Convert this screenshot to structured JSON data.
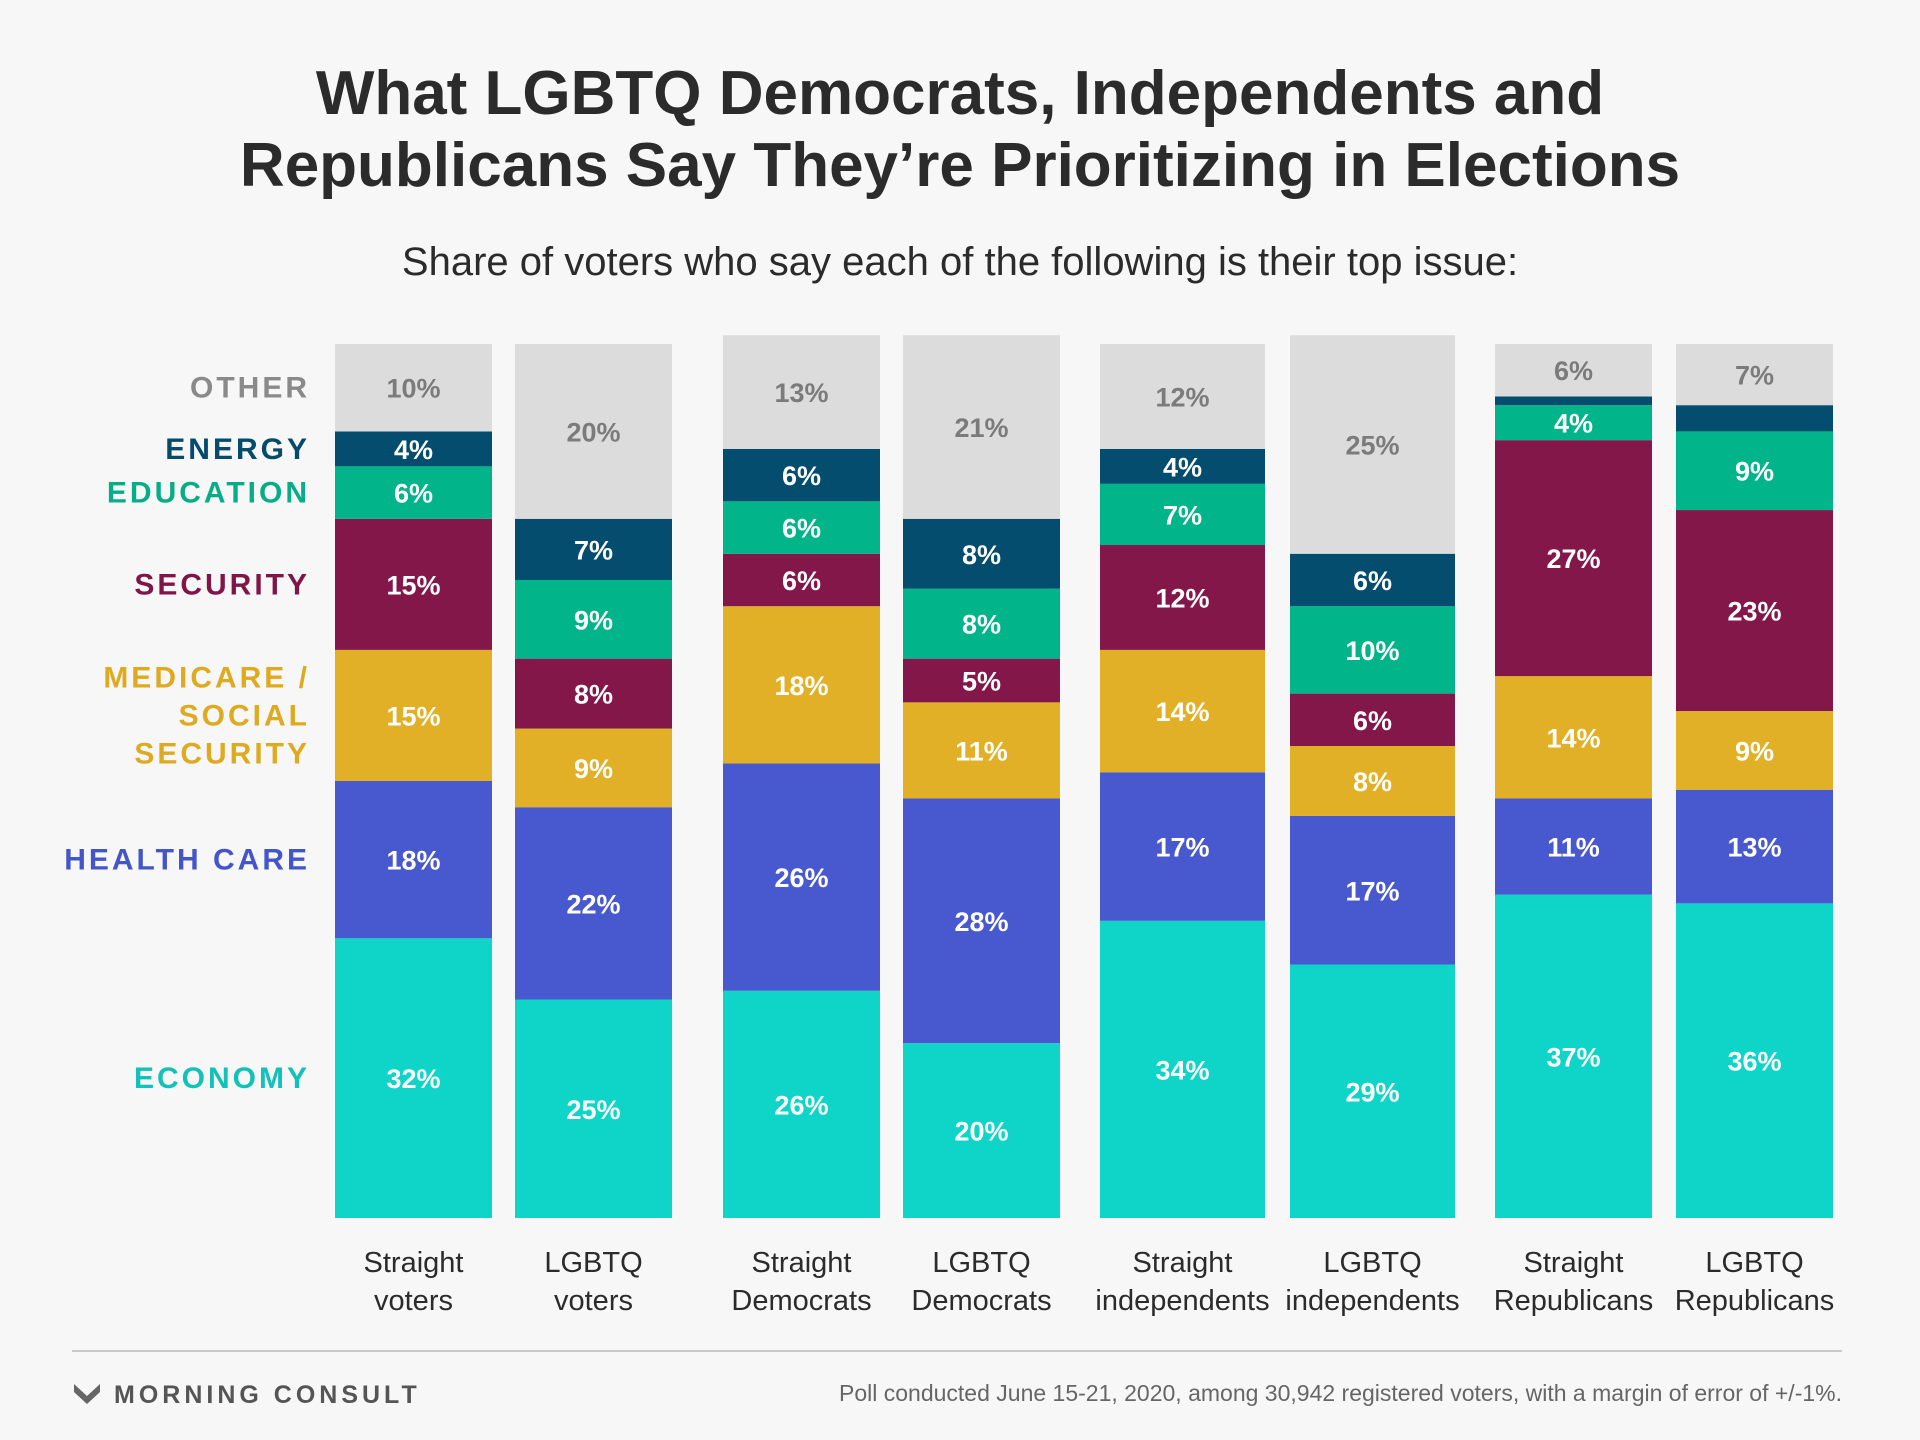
{
  "title": "What LGBTQ Democrats, Independents and\nRepublicans Say They’re Prioritizing in Elections",
  "subtitle": "Share of voters who say each of the following is their top issue:",
  "footer": {
    "brand": "MORNING CONSULT",
    "brand_icon": "morning-consult-logo-icon",
    "source": "Poll conducted June 15-21, 2020, among 30,942 registered voters, with a margin of error of +/-1%."
  },
  "chart_data": {
    "type": "bar",
    "stacked": true,
    "orientation": "vertical",
    "ylim": [
      0,
      100
    ],
    "categories": [
      "Straight\nvoters",
      "LGBTQ\nvoters",
      "Straight\nDemocrats",
      "LGBTQ\nDemocrats",
      "Straight\nindependents",
      "LGBTQ\nindependents",
      "Straight\nRepublicans",
      "LGBTQ\nRepublicans"
    ],
    "series": [
      {
        "name": "ECONOMY",
        "legend": "ECONOMY",
        "color": "#0fd5c9",
        "legend_color": "#13c1b8",
        "values": [
          32,
          25,
          26,
          20,
          34,
          29,
          37,
          36
        ],
        "labels": [
          "32%",
          "25%",
          "26%",
          "20%",
          "34%",
          "29%",
          "37%",
          "36%"
        ]
      },
      {
        "name": "HEALTH CARE",
        "legend": "HEALTH CARE",
        "color": "#4858cf",
        "legend_color": "#4355c8",
        "values": [
          18,
          22,
          26,
          28,
          17,
          17,
          11,
          13
        ],
        "labels": [
          "18%",
          "22%",
          "26%",
          "28%",
          "17%",
          "17%",
          "11%",
          "13%"
        ]
      },
      {
        "name": "MEDICARE / SOCIAL SECURITY",
        "legend": "MEDICARE /\nSOCIAL\nSECURITY",
        "color": "#e2b026",
        "legend_color": "#deaa20",
        "values": [
          15,
          9,
          18,
          11,
          14,
          8,
          14,
          9
        ],
        "labels": [
          "15%",
          "9%",
          "18%",
          "11%",
          "14%",
          "8%",
          "14%",
          "9%"
        ]
      },
      {
        "name": "SECURITY",
        "legend": "SECURITY",
        "color": "#83174a",
        "legend_color": "#801548",
        "values": [
          15,
          8,
          6,
          5,
          12,
          6,
          27,
          23
        ],
        "labels": [
          "15%",
          "8%",
          "6%",
          "5%",
          "12%",
          "6%",
          "27%",
          "23%"
        ]
      },
      {
        "name": "EDUCATION",
        "legend": "EDUCATION",
        "color": "#02b48a",
        "legend_color": "#07ad86",
        "values": [
          6,
          9,
          6,
          8,
          7,
          10,
          4,
          9
        ],
        "labels": [
          "6%",
          "9%",
          "6%",
          "8%",
          "7%",
          "10%",
          "4%",
          "9%"
        ]
      },
      {
        "name": "ENERGY",
        "legend": "ENERGY",
        "color": "#044d6e",
        "legend_color": "#054b6b",
        "values": [
          4,
          7,
          6,
          8,
          4,
          6,
          1,
          3
        ],
        "labels": [
          "4%",
          "7%",
          "6%",
          "8%",
          "4%",
          "6%",
          "",
          ""
        ]
      },
      {
        "name": "OTHER",
        "legend": "OTHER",
        "color": "#dcdcdc",
        "legend_color": "#8a8a8a",
        "values": [
          10,
          20,
          13,
          21,
          12,
          25,
          6,
          7
        ],
        "labels": [
          "10%",
          "20%",
          "13%",
          "21%",
          "12%",
          "25%",
          "6%",
          "7%"
        ]
      }
    ],
    "grid": false,
    "legend": "left"
  }
}
